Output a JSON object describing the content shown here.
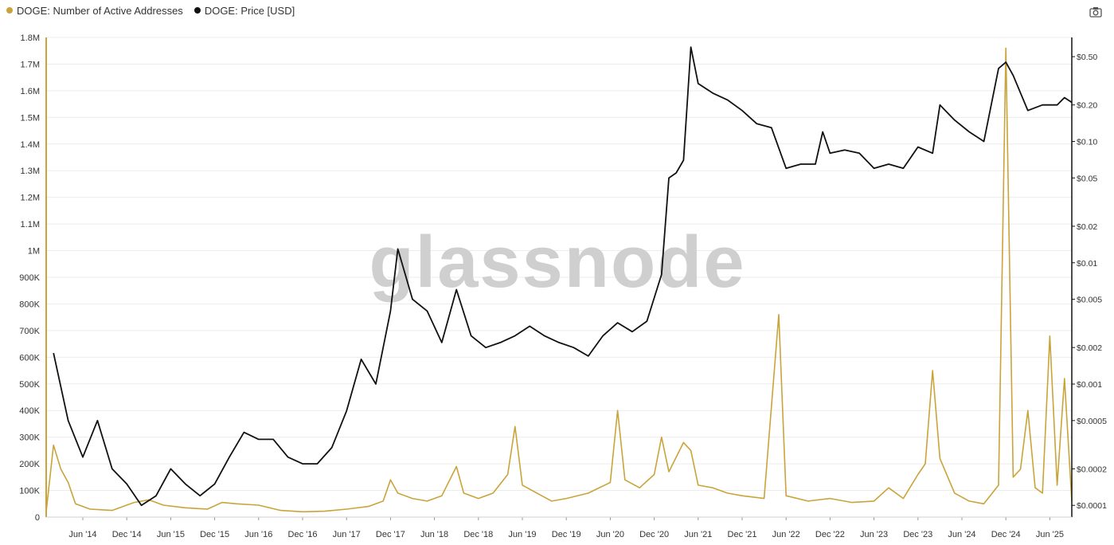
{
  "legend": [
    {
      "label": "DOGE: Number of Active Addresses",
      "color": "#c9a43a"
    },
    {
      "label": "DOGE: Price [USD]",
      "color": "#111111"
    }
  ],
  "watermark": "glassnode",
  "toolbar": {
    "screenshot_icon": "camera-icon"
  },
  "chart_data": {
    "type": "line",
    "x_ticks": [
      "Jun '14",
      "Dec '14",
      "Jun '15",
      "Dec '15",
      "Jun '16",
      "Dec '16",
      "Jun '17",
      "Dec '17",
      "Jun '18",
      "Dec '18",
      "Jun '19",
      "Dec '19",
      "Jun '20",
      "Dec '20",
      "Jun '21",
      "Dec '21",
      "Jun '22",
      "Dec '22",
      "Jun '23",
      "Dec '23",
      "Jun '24",
      "Dec '24",
      "Jun '25"
    ],
    "x_range": [
      "2014-01",
      "2025-09"
    ],
    "y_left": {
      "ticks": [
        "0",
        "100K",
        "200K",
        "300K",
        "400K",
        "500K",
        "600K",
        "700K",
        "800K",
        "900K",
        "1M",
        "1.1M",
        "1.2M",
        "1.3M",
        "1.4M",
        "1.5M",
        "1.6M",
        "1.7M",
        "1.8M"
      ],
      "range": [
        0,
        1800000
      ],
      "scale": "linear"
    },
    "y_right": {
      "ticks": [
        "$0.0001",
        "$0.0002",
        "$0.0005",
        "$0.001",
        "$0.002",
        "$0.005",
        "$0.01",
        "$0.02",
        "$0.05",
        "$0.10",
        "$0.20",
        "$0.50"
      ],
      "range": [
        8e-05,
        0.72
      ],
      "scale": "log"
    },
    "grid": true,
    "legend_position": "top-left",
    "series": [
      {
        "name": "DOGE: Number of Active Addresses",
        "axis": "left",
        "color": "#c9a43a",
        "points": [
          [
            "2014-01",
            20000
          ],
          [
            "2014-02",
            270000
          ],
          [
            "2014-03",
            180000
          ],
          [
            "2014-04",
            130000
          ],
          [
            "2014-05",
            50000
          ],
          [
            "2014-07",
            30000
          ],
          [
            "2014-10",
            25000
          ],
          [
            "2015-01",
            55000
          ],
          [
            "2015-03",
            65000
          ],
          [
            "2015-05",
            45000
          ],
          [
            "2015-08",
            35000
          ],
          [
            "2015-11",
            30000
          ],
          [
            "2016-01",
            55000
          ],
          [
            "2016-03",
            50000
          ],
          [
            "2016-06",
            45000
          ],
          [
            "2016-09",
            25000
          ],
          [
            "2016-12",
            20000
          ],
          [
            "2017-03",
            22000
          ],
          [
            "2017-06",
            30000
          ],
          [
            "2017-09",
            40000
          ],
          [
            "2017-11",
            60000
          ],
          [
            "2017-12",
            140000
          ],
          [
            "2018-01",
            90000
          ],
          [
            "2018-03",
            70000
          ],
          [
            "2018-05",
            60000
          ],
          [
            "2018-07",
            80000
          ],
          [
            "2018-09",
            190000
          ],
          [
            "2018-10",
            90000
          ],
          [
            "2018-12",
            70000
          ],
          [
            "2019-02",
            90000
          ],
          [
            "2019-04",
            160000
          ],
          [
            "2019-05",
            340000
          ],
          [
            "2019-06",
            120000
          ],
          [
            "2019-08",
            90000
          ],
          [
            "2019-10",
            60000
          ],
          [
            "2019-12",
            70000
          ],
          [
            "2020-03",
            90000
          ],
          [
            "2020-06",
            130000
          ],
          [
            "2020-07",
            400000
          ],
          [
            "2020-08",
            140000
          ],
          [
            "2020-10",
            110000
          ],
          [
            "2020-12",
            160000
          ],
          [
            "2021-01",
            300000
          ],
          [
            "2021-02",
            170000
          ],
          [
            "2021-04",
            280000
          ],
          [
            "2021-05",
            250000
          ],
          [
            "2021-06",
            120000
          ],
          [
            "2021-08",
            110000
          ],
          [
            "2021-10",
            90000
          ],
          [
            "2021-12",
            80000
          ],
          [
            "2022-03",
            70000
          ],
          [
            "2022-05",
            760000
          ],
          [
            "2022-06",
            80000
          ],
          [
            "2022-09",
            60000
          ],
          [
            "2022-12",
            70000
          ],
          [
            "2023-03",
            55000
          ],
          [
            "2023-06",
            60000
          ],
          [
            "2023-08",
            110000
          ],
          [
            "2023-10",
            70000
          ],
          [
            "2023-12",
            160000
          ],
          [
            "2024-01",
            200000
          ],
          [
            "2024-02",
            550000
          ],
          [
            "2024-03",
            220000
          ],
          [
            "2024-05",
            90000
          ],
          [
            "2024-07",
            60000
          ],
          [
            "2024-09",
            50000
          ],
          [
            "2024-11",
            120000
          ],
          [
            "2024-12",
            1760000
          ],
          [
            "2025-01",
            150000
          ],
          [
            "2025-02",
            180000
          ],
          [
            "2025-03",
            400000
          ],
          [
            "2025-04",
            110000
          ],
          [
            "2025-05",
            90000
          ],
          [
            "2025-06",
            680000
          ],
          [
            "2025-07",
            120000
          ],
          [
            "2025-08",
            520000
          ],
          [
            "2025-09",
            60000
          ]
        ]
      },
      {
        "name": "DOGE: Price [USD]",
        "axis": "right",
        "color": "#111111",
        "points": [
          [
            "2014-02",
            0.0018
          ],
          [
            "2014-04",
            0.0005
          ],
          [
            "2014-06",
            0.00025
          ],
          [
            "2014-08",
            0.0005
          ],
          [
            "2014-10",
            0.0002
          ],
          [
            "2014-12",
            0.00015
          ],
          [
            "2015-02",
            0.0001
          ],
          [
            "2015-04",
            0.00012
          ],
          [
            "2015-06",
            0.0002
          ],
          [
            "2015-08",
            0.00015
          ],
          [
            "2015-10",
            0.00012
          ],
          [
            "2015-12",
            0.00015
          ],
          [
            "2016-02",
            0.00025
          ],
          [
            "2016-04",
            0.0004
          ],
          [
            "2016-06",
            0.00035
          ],
          [
            "2016-08",
            0.00035
          ],
          [
            "2016-10",
            0.00025
          ],
          [
            "2016-12",
            0.00022
          ],
          [
            "2017-02",
            0.00022
          ],
          [
            "2017-04",
            0.0003
          ],
          [
            "2017-06",
            0.0006
          ],
          [
            "2017-08",
            0.0016
          ],
          [
            "2017-10",
            0.001
          ],
          [
            "2017-12",
            0.004
          ],
          [
            "2018-01",
            0.013
          ],
          [
            "2018-03",
            0.005
          ],
          [
            "2018-05",
            0.004
          ],
          [
            "2018-07",
            0.0022
          ],
          [
            "2018-09",
            0.006
          ],
          [
            "2018-11",
            0.0025
          ],
          [
            "2019-01",
            0.002
          ],
          [
            "2019-03",
            0.0022
          ],
          [
            "2019-05",
            0.0025
          ],
          [
            "2019-07",
            0.003
          ],
          [
            "2019-09",
            0.0025
          ],
          [
            "2019-11",
            0.0022
          ],
          [
            "2020-01",
            0.002
          ],
          [
            "2020-03",
            0.0017
          ],
          [
            "2020-05",
            0.0025
          ],
          [
            "2020-07",
            0.0032
          ],
          [
            "2020-09",
            0.0027
          ],
          [
            "2020-11",
            0.0033
          ],
          [
            "2021-01",
            0.008
          ],
          [
            "2021-02",
            0.05
          ],
          [
            "2021-03",
            0.055
          ],
          [
            "2021-04",
            0.07
          ],
          [
            "2021-05",
            0.6
          ],
          [
            "2021-06",
            0.3
          ],
          [
            "2021-08",
            0.25
          ],
          [
            "2021-10",
            0.22
          ],
          [
            "2021-12",
            0.18
          ],
          [
            "2022-02",
            0.14
          ],
          [
            "2022-04",
            0.13
          ],
          [
            "2022-06",
            0.06
          ],
          [
            "2022-08",
            0.065
          ],
          [
            "2022-10",
            0.065
          ],
          [
            "2022-11",
            0.12
          ],
          [
            "2022-12",
            0.08
          ],
          [
            "2023-02",
            0.085
          ],
          [
            "2023-04",
            0.08
          ],
          [
            "2023-06",
            0.06
          ],
          [
            "2023-08",
            0.065
          ],
          [
            "2023-10",
            0.06
          ],
          [
            "2023-12",
            0.09
          ],
          [
            "2024-02",
            0.08
          ],
          [
            "2024-03",
            0.2
          ],
          [
            "2024-05",
            0.15
          ],
          [
            "2024-07",
            0.12
          ],
          [
            "2024-09",
            0.1
          ],
          [
            "2024-11",
            0.4
          ],
          [
            "2024-12",
            0.45
          ],
          [
            "2025-01",
            0.35
          ],
          [
            "2025-03",
            0.18
          ],
          [
            "2025-05",
            0.2
          ],
          [
            "2025-07",
            0.2
          ],
          [
            "2025-08",
            0.23
          ],
          [
            "2025-09",
            0.21
          ]
        ]
      }
    ]
  }
}
